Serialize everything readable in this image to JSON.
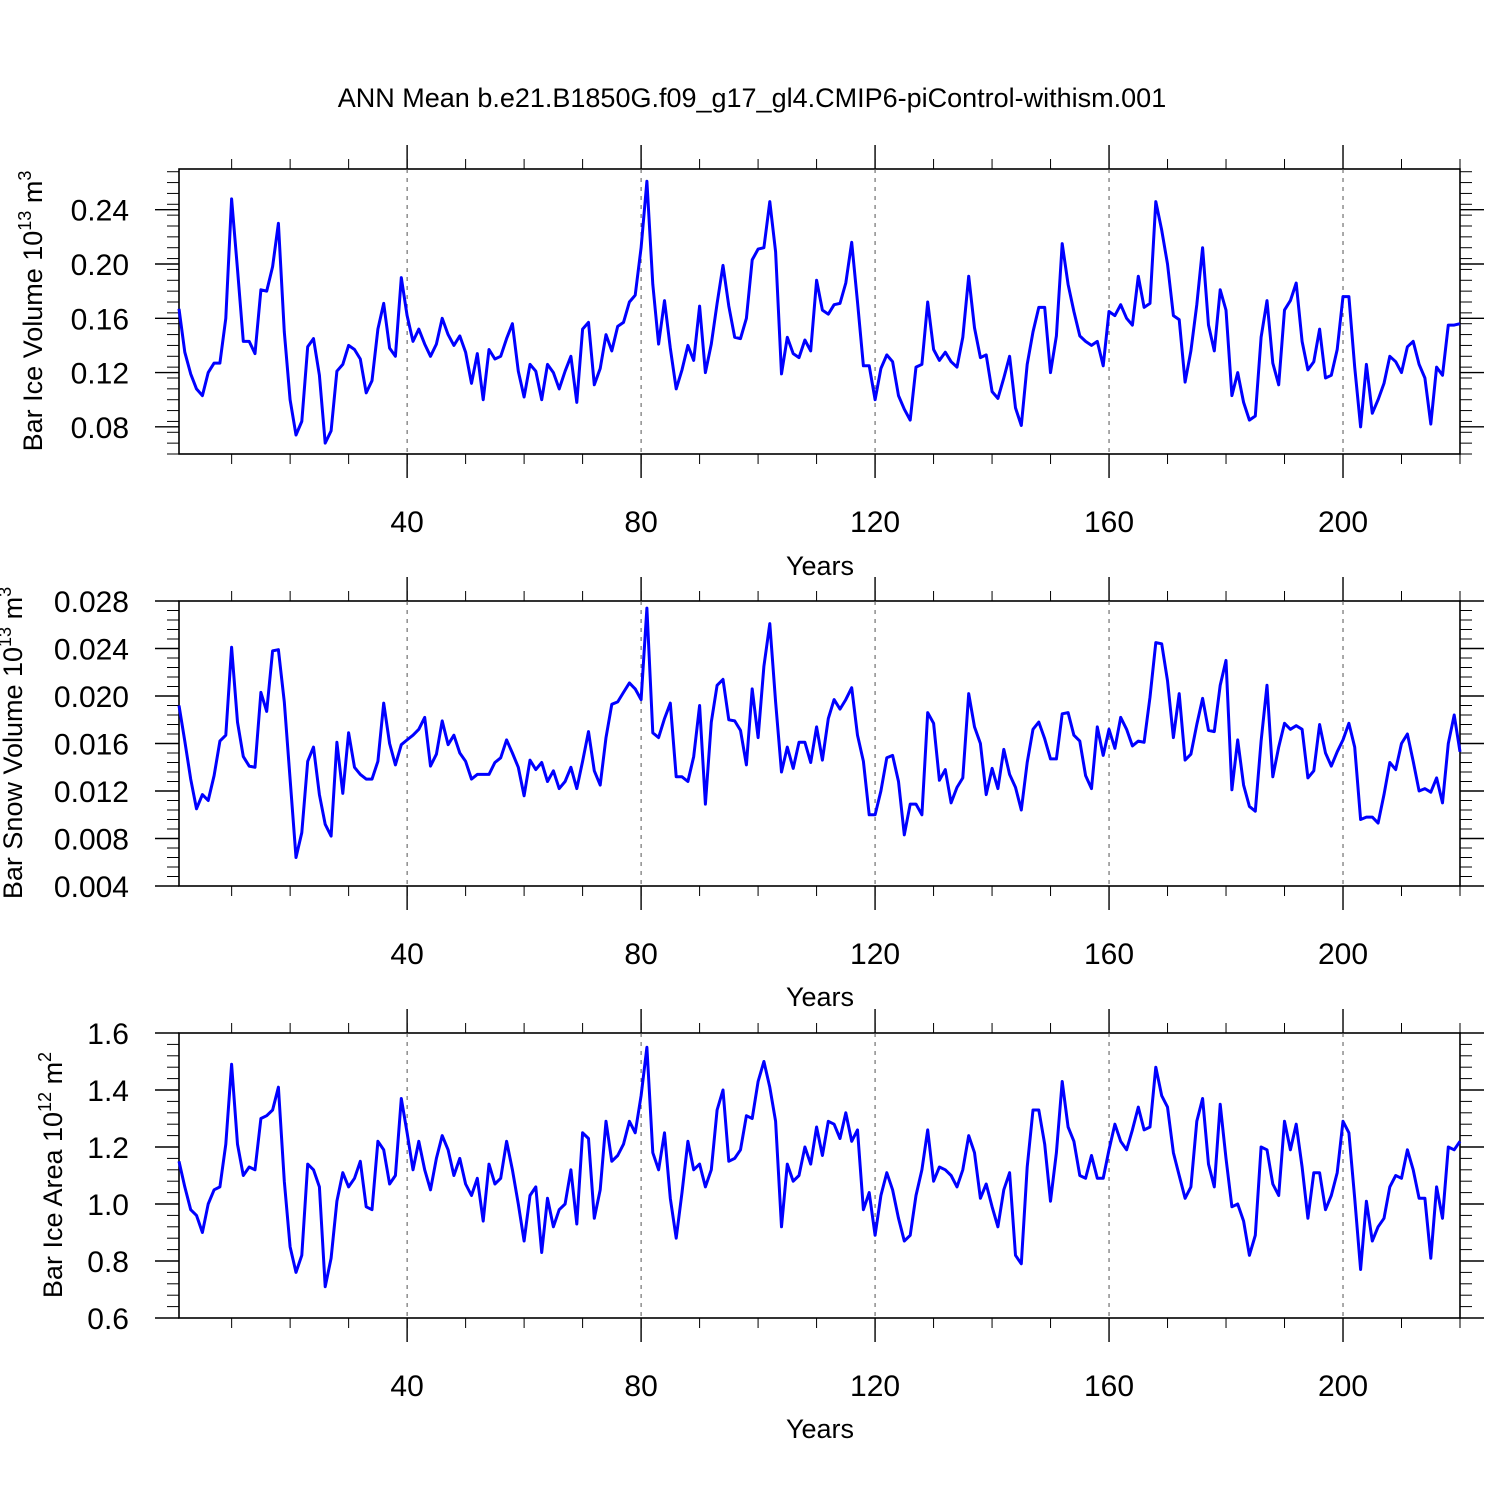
{
  "figure": {
    "title": "ANN Mean b.e21.B1850G.f09_g17_gl4.CMIP6-piControl-withism.001"
  },
  "chart_data": [
    {
      "type": "line",
      "title": "",
      "xlabel": "Years",
      "ylabel": "Bar Ice Volume 10",
      "ylabel_exp1": "13",
      "ylabel_unit": " m",
      "ylabel_exp2": "3",
      "xlim": [
        1,
        220
      ],
      "ylim": [
        0.06,
        0.27
      ],
      "xticks": [
        40,
        80,
        120,
        160,
        200
      ],
      "yticks": [
        0.08,
        0.12,
        0.16,
        0.2,
        0.24
      ],
      "ytick_labels": [
        "0.08",
        "0.12",
        "0.16",
        "0.20",
        "0.24"
      ],
      "grid": "dashed vertical lines at x ticks",
      "line_color": "#0000ff",
      "x_start": 1,
      "y": [
        0.167,
        0.135,
        0.119,
        0.108,
        0.103,
        0.12,
        0.127,
        0.127,
        0.16,
        0.248,
        0.196,
        0.143,
        0.143,
        0.134,
        0.181,
        0.18,
        0.198,
        0.23,
        0.15,
        0.1,
        0.074,
        0.084,
        0.139,
        0.145,
        0.118,
        0.068,
        0.077,
        0.121,
        0.126,
        0.14,
        0.137,
        0.13,
        0.105,
        0.114,
        0.152,
        0.171,
        0.138,
        0.132,
        0.19,
        0.162,
        0.143,
        0.152,
        0.141,
        0.132,
        0.141,
        0.16,
        0.148,
        0.14,
        0.147,
        0.135,
        0.112,
        0.134,
        0.1,
        0.137,
        0.13,
        0.132,
        0.145,
        0.156,
        0.121,
        0.102,
        0.126,
        0.121,
        0.1,
        0.126,
        0.12,
        0.108,
        0.121,
        0.132,
        0.098,
        0.152,
        0.157,
        0.111,
        0.123,
        0.148,
        0.136,
        0.154,
        0.157,
        0.172,
        0.177,
        0.212,
        0.261,
        0.185,
        0.141,
        0.173,
        0.138,
        0.108,
        0.122,
        0.14,
        0.129,
        0.169,
        0.12,
        0.141,
        0.171,
        0.199,
        0.169,
        0.146,
        0.145,
        0.16,
        0.203,
        0.211,
        0.212,
        0.246,
        0.209,
        0.119,
        0.146,
        0.134,
        0.131,
        0.144,
        0.136,
        0.188,
        0.166,
        0.163,
        0.17,
        0.171,
        0.186,
        0.216,
        0.172,
        0.125,
        0.125,
        0.1,
        0.123,
        0.133,
        0.128,
        0.103,
        0.093,
        0.085,
        0.124,
        0.126,
        0.172,
        0.137,
        0.129,
        0.135,
        0.128,
        0.124,
        0.146,
        0.191,
        0.153,
        0.131,
        0.133,
        0.106,
        0.101,
        0.116,
        0.132,
        0.094,
        0.081,
        0.126,
        0.15,
        0.168,
        0.168,
        0.12,
        0.147,
        0.215,
        0.185,
        0.165,
        0.147,
        0.143,
        0.14,
        0.143,
        0.125,
        0.165,
        0.162,
        0.17,
        0.16,
        0.155,
        0.191,
        0.168,
        0.171,
        0.246,
        0.225,
        0.2,
        0.162,
        0.159,
        0.113,
        0.136,
        0.17,
        0.212,
        0.155,
        0.136,
        0.181,
        0.166,
        0.103,
        0.12,
        0.098,
        0.085,
        0.088,
        0.146,
        0.173,
        0.127,
        0.111,
        0.166,
        0.173,
        0.186,
        0.143,
        0.122,
        0.128,
        0.152,
        0.116,
        0.118,
        0.137,
        0.176,
        0.176,
        0.124,
        0.08,
        0.126,
        0.09,
        0.1,
        0.112,
        0.132,
        0.128,
        0.12,
        0.139,
        0.143,
        0.126,
        0.116,
        0.082,
        0.124,
        0.118,
        0.155,
        0.155,
        0.156
      ]
    },
    {
      "type": "line",
      "title": "",
      "xlabel": "Years",
      "ylabel": "Bar Snow Volume 10",
      "ylabel_exp1": "13",
      "ylabel_unit": " m",
      "ylabel_exp2": "3",
      "xlim": [
        1,
        220
      ],
      "ylim": [
        0.004,
        0.028
      ],
      "xticks": [
        40,
        80,
        120,
        160,
        200
      ],
      "yticks": [
        0.004,
        0.008,
        0.012,
        0.016,
        0.02,
        0.024,
        0.028
      ],
      "ytick_labels": [
        "0.004",
        "0.008",
        "0.012",
        "0.016",
        "0.020",
        "0.024",
        "0.028"
      ],
      "grid": "dashed vertical lines at x ticks",
      "line_color": "#0000ff",
      "x_start": 1,
      "y": [
        0.0192,
        0.0162,
        0.013,
        0.0105,
        0.0117,
        0.0112,
        0.0133,
        0.0162,
        0.0167,
        0.0241,
        0.0178,
        0.0149,
        0.0141,
        0.014,
        0.0203,
        0.0187,
        0.0238,
        0.0239,
        0.0195,
        0.013,
        0.0064,
        0.0085,
        0.0145,
        0.0157,
        0.0117,
        0.0092,
        0.0082,
        0.0161,
        0.0118,
        0.0169,
        0.014,
        0.0134,
        0.013,
        0.013,
        0.0145,
        0.0194,
        0.016,
        0.0142,
        0.0159,
        0.0163,
        0.0167,
        0.0172,
        0.0182,
        0.0141,
        0.0151,
        0.0179,
        0.0159,
        0.0167,
        0.0152,
        0.0145,
        0.013,
        0.0134,
        0.0134,
        0.0134,
        0.0144,
        0.0148,
        0.0163,
        0.0152,
        0.014,
        0.0116,
        0.0146,
        0.0138,
        0.0144,
        0.0128,
        0.0137,
        0.0122,
        0.0128,
        0.014,
        0.0122,
        0.0145,
        0.017,
        0.0137,
        0.0125,
        0.0165,
        0.0193,
        0.0195,
        0.0203,
        0.0211,
        0.0206,
        0.0197,
        0.0274,
        0.0169,
        0.0165,
        0.0181,
        0.0194,
        0.0132,
        0.0132,
        0.0128,
        0.0149,
        0.0192,
        0.0109,
        0.0178,
        0.0209,
        0.0214,
        0.018,
        0.0179,
        0.0171,
        0.0142,
        0.0206,
        0.0165,
        0.0225,
        0.0261,
        0.0195,
        0.0136,
        0.0157,
        0.0139,
        0.0161,
        0.0161,
        0.0144,
        0.0174,
        0.0146,
        0.0181,
        0.0197,
        0.0189,
        0.0197,
        0.0207,
        0.0167,
        0.0145,
        0.01,
        0.01,
        0.012,
        0.0148,
        0.015,
        0.0128,
        0.0083,
        0.0109,
        0.0109,
        0.01,
        0.0186,
        0.0177,
        0.0129,
        0.0138,
        0.011,
        0.0123,
        0.0131,
        0.0202,
        0.0174,
        0.016,
        0.0117,
        0.0139,
        0.0122,
        0.0155,
        0.0134,
        0.0123,
        0.0104,
        0.0144,
        0.0172,
        0.0178,
        0.0164,
        0.0147,
        0.0147,
        0.0185,
        0.0186,
        0.0167,
        0.0162,
        0.0133,
        0.0122,
        0.0174,
        0.015,
        0.0172,
        0.0156,
        0.0182,
        0.0172,
        0.0158,
        0.0162,
        0.0161,
        0.0199,
        0.0245,
        0.0244,
        0.0213,
        0.0165,
        0.0202,
        0.0146,
        0.0151,
        0.0176,
        0.0198,
        0.0171,
        0.017,
        0.0209,
        0.023,
        0.0121,
        0.0163,
        0.0125,
        0.0107,
        0.0103,
        0.0162,
        0.0209,
        0.0132,
        0.0157,
        0.0177,
        0.0172,
        0.0175,
        0.0172,
        0.0131,
        0.0137,
        0.0176,
        0.0152,
        0.0141,
        0.0153,
        0.0163,
        0.0177,
        0.0157,
        0.0096,
        0.0098,
        0.0098,
        0.0093,
        0.0117,
        0.0144,
        0.0138,
        0.016,
        0.0168,
        0.0145,
        0.012,
        0.0122,
        0.0119,
        0.0131,
        0.011,
        0.016,
        0.0184,
        0.0153
      ]
    },
    {
      "type": "line",
      "title": "",
      "xlabel": "Years",
      "ylabel": "Bar Ice Area 10",
      "ylabel_exp1": "12",
      "ylabel_unit": " m",
      "ylabel_exp2": "2",
      "xlim": [
        1,
        220
      ],
      "ylim": [
        0.6,
        1.6
      ],
      "xticks": [
        40,
        80,
        120,
        160,
        200
      ],
      "yticks": [
        0.6,
        0.8,
        1.0,
        1.2,
        1.4,
        1.6
      ],
      "ytick_labels": [
        "0.6",
        "0.8",
        "1.0",
        "1.2",
        "1.4",
        "1.6"
      ],
      "grid": "dashed vertical lines at x ticks",
      "line_color": "#0000ff",
      "x_start": 1,
      "y": [
        1.15,
        1.06,
        0.98,
        0.96,
        0.9,
        1.0,
        1.05,
        1.06,
        1.21,
        1.49,
        1.21,
        1.1,
        1.13,
        1.12,
        1.3,
        1.31,
        1.33,
        1.41,
        1.08,
        0.85,
        0.76,
        0.82,
        1.14,
        1.12,
        1.06,
        0.71,
        0.81,
        1.01,
        1.11,
        1.06,
        1.09,
        1.15,
        0.99,
        0.98,
        1.22,
        1.19,
        1.07,
        1.1,
        1.37,
        1.25,
        1.12,
        1.22,
        1.12,
        1.05,
        1.16,
        1.24,
        1.19,
        1.1,
        1.16,
        1.07,
        1.03,
        1.09,
        0.94,
        1.14,
        1.07,
        1.09,
        1.22,
        1.12,
        1.0,
        0.87,
        1.03,
        1.06,
        0.83,
        1.02,
        0.92,
        0.98,
        1.0,
        1.12,
        0.93,
        1.25,
        1.23,
        0.95,
        1.05,
        1.29,
        1.15,
        1.17,
        1.21,
        1.29,
        1.25,
        1.38,
        1.55,
        1.18,
        1.12,
        1.25,
        1.02,
        0.88,
        1.04,
        1.22,
        1.12,
        1.14,
        1.06,
        1.12,
        1.33,
        1.4,
        1.15,
        1.16,
        1.19,
        1.31,
        1.3,
        1.43,
        1.5,
        1.41,
        1.29,
        0.92,
        1.14,
        1.08,
        1.1,
        1.2,
        1.14,
        1.27,
        1.17,
        1.29,
        1.28,
        1.23,
        1.32,
        1.22,
        1.26,
        0.98,
        1.04,
        0.89,
        1.03,
        1.11,
        1.05,
        0.95,
        0.87,
        0.89,
        1.03,
        1.12,
        1.26,
        1.08,
        1.13,
        1.12,
        1.1,
        1.06,
        1.12,
        1.24,
        1.18,
        1.02,
        1.07,
        0.99,
        0.92,
        1.05,
        1.11,
        0.82,
        0.79,
        1.13,
        1.33,
        1.33,
        1.21,
        1.01,
        1.18,
        1.43,
        1.27,
        1.22,
        1.1,
        1.09,
        1.17,
        1.09,
        1.09,
        1.19,
        1.28,
        1.22,
        1.19,
        1.26,
        1.34,
        1.26,
        1.27,
        1.48,
        1.38,
        1.34,
        1.18,
        1.1,
        1.02,
        1.06,
        1.29,
        1.37,
        1.14,
        1.06,
        1.35,
        1.16,
        0.99,
        1.0,
        0.94,
        0.82,
        0.89,
        1.2,
        1.19,
        1.07,
        1.03,
        1.29,
        1.19,
        1.28,
        1.13,
        0.95,
        1.11,
        1.11,
        0.98,
        1.03,
        1.11,
        1.29,
        1.25,
        1.02,
        0.77,
        1.01,
        0.87,
        0.92,
        0.95,
        1.06,
        1.1,
        1.09,
        1.19,
        1.12,
        1.02,
        1.02,
        0.81,
        1.06,
        0.95,
        1.2,
        1.19,
        1.22
      ]
    }
  ]
}
